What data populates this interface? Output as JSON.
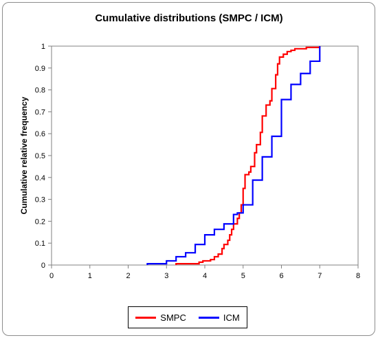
{
  "chart_data": {
    "type": "line",
    "title": "Cumulative distributions (SMPC / ICM)",
    "xlabel": "",
    "ylabel": "Cumulative relative frequency",
    "xlim": [
      0,
      8
    ],
    "ylim": [
      0,
      1
    ],
    "x_ticks": [
      "0",
      "1",
      "2",
      "3",
      "4",
      "5",
      "6",
      "7",
      "8"
    ],
    "y_ticks": [
      "0",
      "0.1",
      "0.2",
      "0.3",
      "0.4",
      "0.5",
      "0.6",
      "0.7",
      "0.8",
      "0.9",
      "1"
    ],
    "grid": false,
    "legend_position": "bottom",
    "step": true,
    "series": [
      {
        "name": "SMPC",
        "color": "#ff0000",
        "points": [
          [
            3.25,
            0
          ],
          [
            3.25,
            0.006
          ],
          [
            3.85,
            0.006
          ],
          [
            3.85,
            0.013
          ],
          [
            3.95,
            0.013
          ],
          [
            3.95,
            0.019
          ],
          [
            4.15,
            0.019
          ],
          [
            4.15,
            0.025
          ],
          [
            4.25,
            0.025
          ],
          [
            4.25,
            0.038
          ],
          [
            4.35,
            0.038
          ],
          [
            4.35,
            0.05
          ],
          [
            4.45,
            0.05
          ],
          [
            4.45,
            0.075
          ],
          [
            4.5,
            0.075
          ],
          [
            4.5,
            0.094
          ],
          [
            4.6,
            0.094
          ],
          [
            4.6,
            0.113
          ],
          [
            4.65,
            0.113
          ],
          [
            4.65,
            0.138
          ],
          [
            4.7,
            0.138
          ],
          [
            4.7,
            0.163
          ],
          [
            4.75,
            0.163
          ],
          [
            4.75,
            0.188
          ],
          [
            4.85,
            0.188
          ],
          [
            4.85,
            0.213
          ],
          [
            4.9,
            0.213
          ],
          [
            4.9,
            0.238
          ],
          [
            4.95,
            0.238
          ],
          [
            4.95,
            0.275
          ],
          [
            5.0,
            0.275
          ],
          [
            5.0,
            0.35
          ],
          [
            5.05,
            0.35
          ],
          [
            5.05,
            0.413
          ],
          [
            5.15,
            0.413
          ],
          [
            5.15,
            0.425
          ],
          [
            5.2,
            0.425
          ],
          [
            5.2,
            0.45
          ],
          [
            5.3,
            0.45
          ],
          [
            5.3,
            0.513
          ],
          [
            5.35,
            0.513
          ],
          [
            5.35,
            0.55
          ],
          [
            5.45,
            0.55
          ],
          [
            5.45,
            0.606
          ],
          [
            5.5,
            0.606
          ],
          [
            5.5,
            0.681
          ],
          [
            5.6,
            0.681
          ],
          [
            5.6,
            0.731
          ],
          [
            5.7,
            0.731
          ],
          [
            5.7,
            0.75
          ],
          [
            5.75,
            0.75
          ],
          [
            5.75,
            0.806
          ],
          [
            5.85,
            0.806
          ],
          [
            5.85,
            0.869
          ],
          [
            5.9,
            0.869
          ],
          [
            5.9,
            0.919
          ],
          [
            5.95,
            0.919
          ],
          [
            5.95,
            0.95
          ],
          [
            6.05,
            0.95
          ],
          [
            6.05,
            0.963
          ],
          [
            6.15,
            0.963
          ],
          [
            6.15,
            0.975
          ],
          [
            6.25,
            0.975
          ],
          [
            6.25,
            0.981
          ],
          [
            6.35,
            0.981
          ],
          [
            6.35,
            0.988
          ],
          [
            6.65,
            0.988
          ],
          [
            6.65,
            0.994
          ],
          [
            7.0,
            0.994
          ],
          [
            7.0,
            1.0
          ]
        ]
      },
      {
        "name": "ICM",
        "color": "#0000ff",
        "points": [
          [
            2.5,
            0
          ],
          [
            2.5,
            0.006
          ],
          [
            3.0,
            0.006
          ],
          [
            3.0,
            0.019
          ],
          [
            3.25,
            0.019
          ],
          [
            3.25,
            0.038
          ],
          [
            3.5,
            0.038
          ],
          [
            3.5,
            0.056
          ],
          [
            3.75,
            0.056
          ],
          [
            3.75,
            0.094
          ],
          [
            4.0,
            0.094
          ],
          [
            4.0,
            0.138
          ],
          [
            4.25,
            0.138
          ],
          [
            4.25,
            0.163
          ],
          [
            4.5,
            0.163
          ],
          [
            4.5,
            0.188
          ],
          [
            4.75,
            0.188
          ],
          [
            4.75,
            0.231
          ],
          [
            4.85,
            0.231
          ],
          [
            4.85,
            0.238
          ],
          [
            5.0,
            0.238
          ],
          [
            5.0,
            0.275
          ],
          [
            5.25,
            0.275
          ],
          [
            5.25,
            0.388
          ],
          [
            5.5,
            0.388
          ],
          [
            5.5,
            0.494
          ],
          [
            5.75,
            0.494
          ],
          [
            5.75,
            0.588
          ],
          [
            6.0,
            0.588
          ],
          [
            6.0,
            0.756
          ],
          [
            6.25,
            0.756
          ],
          [
            6.25,
            0.825
          ],
          [
            6.5,
            0.825
          ],
          [
            6.5,
            0.875
          ],
          [
            6.75,
            0.875
          ],
          [
            6.75,
            0.931
          ],
          [
            7.0,
            0.931
          ],
          [
            7.0,
            1.0
          ]
        ]
      }
    ]
  }
}
